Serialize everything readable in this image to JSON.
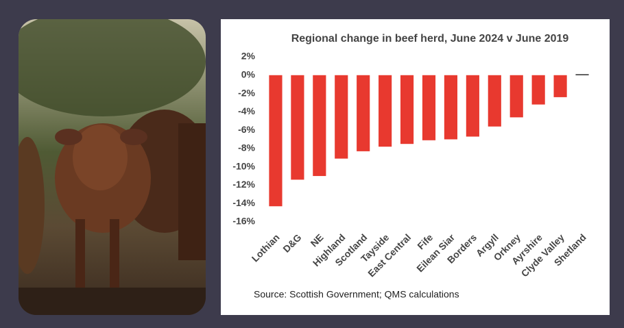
{
  "chart_data": {
    "type": "bar",
    "title": "Regional change in beef herd, June 2024 v June 2019",
    "categories": [
      "Lothian",
      "D&G",
      "NE",
      "Highland",
      "Scotland",
      "Tayside",
      "East Central",
      "Fife",
      "Eilean Siar",
      "Borders",
      "Argyll",
      "Orkney",
      "Ayrshire",
      "Clyde Valley",
      "Shetland"
    ],
    "values": [
      -14.3,
      -11.4,
      -11.0,
      -9.1,
      -8.3,
      -7.8,
      -7.5,
      -7.1,
      -7.0,
      -6.7,
      -5.6,
      -4.6,
      -3.2,
      -2.4,
      0.1
    ],
    "colors": [
      "#e8392f",
      "#e8392f",
      "#e8392f",
      "#e8392f",
      "#e8392f",
      "#e8392f",
      "#e8392f",
      "#e8392f",
      "#e8392f",
      "#e8392f",
      "#e8392f",
      "#e8392f",
      "#e8392f",
      "#e8392f",
      "#111111"
    ],
    "ylim": [
      -16,
      2
    ],
    "yticks": [
      {
        "value": 2,
        "label": "2%"
      },
      {
        "value": 0,
        "label": "0%"
      },
      {
        "value": -2,
        "label": "-2%"
      },
      {
        "value": -4,
        "label": "-4%"
      },
      {
        "value": -6,
        "label": "-6%"
      },
      {
        "value": -8,
        "label": "-8%"
      },
      {
        "value": -10,
        "label": "-10%"
      },
      {
        "value": -12,
        "label": "-12%"
      },
      {
        "value": -14,
        "label": "-14%"
      },
      {
        "value": -16,
        "label": "-16%"
      }
    ],
    "grid": false,
    "source": "Source: Scottish Government; QMS calculations"
  }
}
